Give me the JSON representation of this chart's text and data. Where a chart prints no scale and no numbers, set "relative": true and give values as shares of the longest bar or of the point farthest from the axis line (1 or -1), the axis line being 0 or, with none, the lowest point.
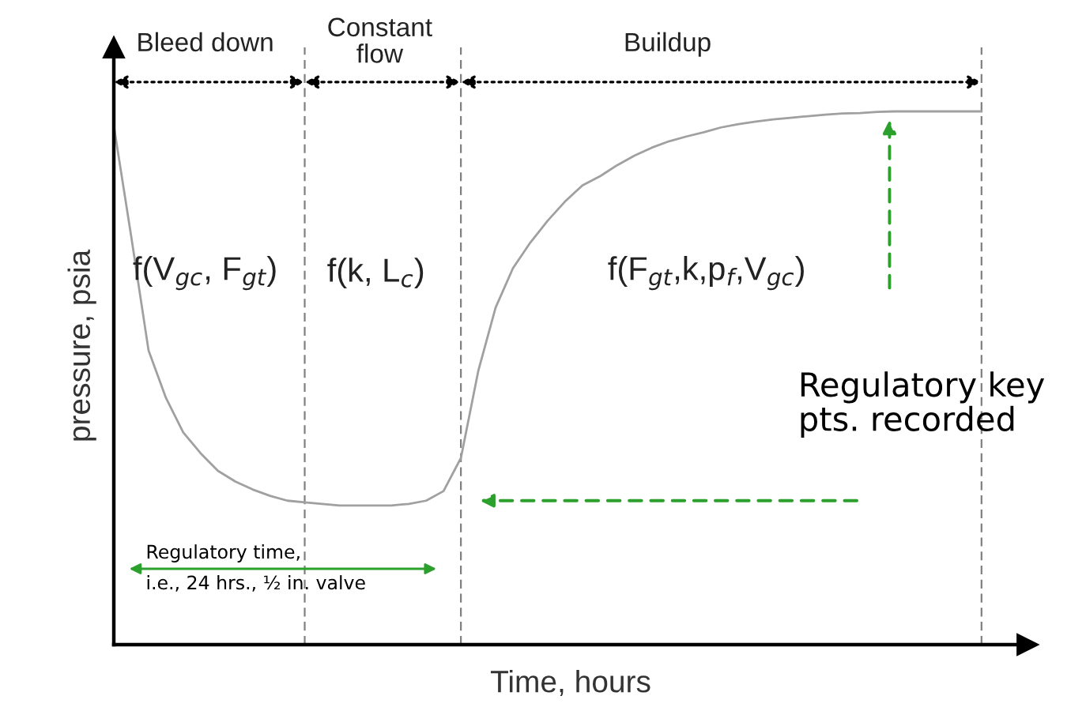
{
  "chart_data": {
    "type": "line",
    "relative": true,
    "tick_labels": false,
    "grid": "x",
    "xlabel": "Time, hours",
    "ylabel": "pressure, psia",
    "categories": [
      null,
      null,
      null,
      null,
      null,
      null,
      null,
      null,
      null,
      null,
      null,
      null,
      null,
      null,
      null,
      null,
      null,
      null,
      null,
      null,
      null,
      null,
      null,
      null,
      null,
      null,
      null,
      null,
      null,
      null,
      null,
      null,
      null,
      null,
      null,
      null,
      null,
      null,
      null,
      null,
      null,
      null,
      null,
      null,
      null,
      null,
      null,
      null,
      null,
      null,
      null
    ],
    "series": [
      {
        "color": "#a0a0a0",
        "values": [
          0.973,
          0.766,
          0.552,
          0.463,
          0.398,
          0.359,
          0.326,
          0.306,
          0.291,
          0.279,
          0.27,
          0.267,
          0.264,
          0.261,
          0.261,
          0.261,
          0.261,
          0.264,
          0.27,
          0.288,
          0.35,
          0.513,
          0.632,
          0.706,
          0.754,
          0.795,
          0.831,
          0.861,
          0.878,
          0.899,
          0.917,
          0.932,
          0.944,
          0.953,
          0.961,
          0.97,
          0.976,
          0.981,
          0.985,
          0.988,
          0.991,
          0.994,
          0.996,
          0.997,
          0.999,
          1.0,
          1.0,
          1.0,
          1.0,
          1.0,
          1.0
        ]
      }
    ],
    "annotations": [
      "Bleed down",
      "Constant\nflow",
      "Buildup",
      "f(V$_{gc}$, F$_{gt}$)",
      "f(k, L$_{c}$)",
      "f(F$_{gt}$,k,p$_{f}$,V$_{gc}$)",
      "Regulatory key\npts. recorded",
      "Regulatory time,\ni.e., 24 hrs., ½ in. valve"
    ]
  }
}
